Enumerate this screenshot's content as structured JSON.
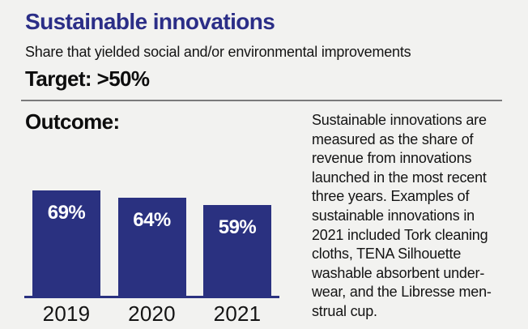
{
  "page": {
    "title": "Sustainable innovations",
    "subtitle": "Share that yielded social and/or environmental improvements",
    "target_label": "Target: >50%",
    "outcome_label": "Outcome:"
  },
  "colors": {
    "background": "#f2f2f0",
    "title_blue": "#2b2e87",
    "bar_navy": "#2a3180",
    "text_ink": "#141414",
    "divider_gray": "#7b7b7b",
    "bar_value_white": "#ffffff"
  },
  "chart_data": {
    "type": "bar",
    "title": "Outcome:",
    "categories": [
      "2019",
      "2020",
      "2021"
    ],
    "values": [
      69,
      64,
      59
    ],
    "value_labels": [
      "69%",
      "64%",
      "59%"
    ],
    "unit": "%",
    "target": ">50%",
    "ylim": [
      0,
      100
    ],
    "grid": false,
    "legend": false,
    "bar_color": "#2a3180",
    "value_label_position": "inside-top",
    "axis_line": true
  },
  "description": {
    "lines": [
      "Sustainable innovations are",
      "measured as the share of",
      "revenue from innovations",
      "launched in the most recent",
      "three years. Examples of",
      "sustainable innovations in",
      "2021 included Tork cleaning",
      "cloths, TENA Silhouette",
      "washable absorbent under-",
      "wear, and the Libresse men-",
      "strual cup."
    ],
    "full_text": "Sustainable innovations are measured as the share of revenue from innovations launched in the most recent three years. Examples of sustainable innovations in 2021 included Tork cleaning cloths, TENA Silhouette washable absorbent underwear, and the Libresse menstrual cup."
  }
}
